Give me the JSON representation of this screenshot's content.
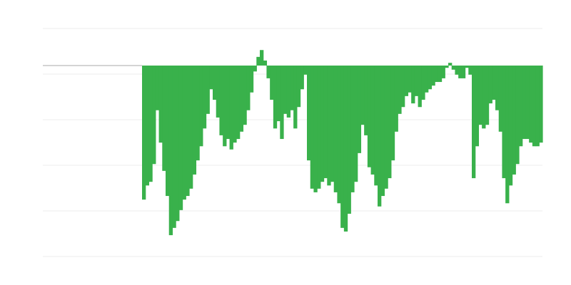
{
  "chart_data": {
    "type": "bar",
    "title": "",
    "xlabel": "",
    "ylabel": "",
    "ylim": [
      -4.1875,
      0.8125
    ],
    "baseline": 0,
    "grid": true,
    "gridlines": [
      0.8125,
      -0.1875,
      -1.1875,
      -2.1875,
      -3.1875,
      -4.1875
    ],
    "colors": {
      "bar": "#39b14b",
      "grid": "#eeeeee",
      "baseline": "#aaaaaa"
    },
    "values": [
      -2.94,
      -2.63,
      -2.55,
      -2.16,
      -0.98,
      -1.69,
      -2.31,
      -2.86,
      -3.72,
      -3.56,
      -3.41,
      -3.17,
      -2.94,
      -2.86,
      -2.7,
      -2.39,
      -2.08,
      -1.77,
      -1.38,
      -1.06,
      -0.52,
      -0.75,
      -1.14,
      -1.53,
      -1.77,
      -1.61,
      -1.84,
      -1.69,
      -1.61,
      -1.45,
      -1.3,
      -0.98,
      -0.59,
      -0.13,
      0.19,
      0.34,
      0.11,
      -0.28,
      -0.75,
      -1.38,
      -1.22,
      -1.61,
      -1.06,
      -1.14,
      -0.98,
      -1.38,
      -0.91,
      -0.52,
      -0.2,
      -2.08,
      -2.7,
      -2.78,
      -2.7,
      -2.55,
      -2.47,
      -2.63,
      -2.55,
      -2.78,
      -3.02,
      -3.56,
      -3.64,
      -3.25,
      -2.78,
      -2.55,
      -1.92,
      -1.3,
      -1.53,
      -2.23,
      -2.39,
      -2.63,
      -3.09,
      -2.86,
      -2.7,
      -2.47,
      -2.08,
      -1.45,
      -1.06,
      -0.91,
      -0.67,
      -0.59,
      -0.83,
      -0.67,
      -0.91,
      -0.75,
      -0.59,
      -0.52,
      -0.44,
      -0.36,
      -0.36,
      -0.28,
      -0.05,
      0.06,
      -0.09,
      -0.2,
      -0.28,
      -0.28,
      -0.05,
      -0.2,
      -2.47,
      -1.77,
      -1.3,
      -1.38,
      -1.3,
      -0.83,
      -0.75,
      -0.98,
      -1.45,
      -2.47,
      -3.02,
      -2.63,
      -2.39,
      -2.16,
      -1.77,
      -1.61,
      -1.61,
      -1.69,
      -1.77,
      -1.77,
      -1.69
    ]
  }
}
